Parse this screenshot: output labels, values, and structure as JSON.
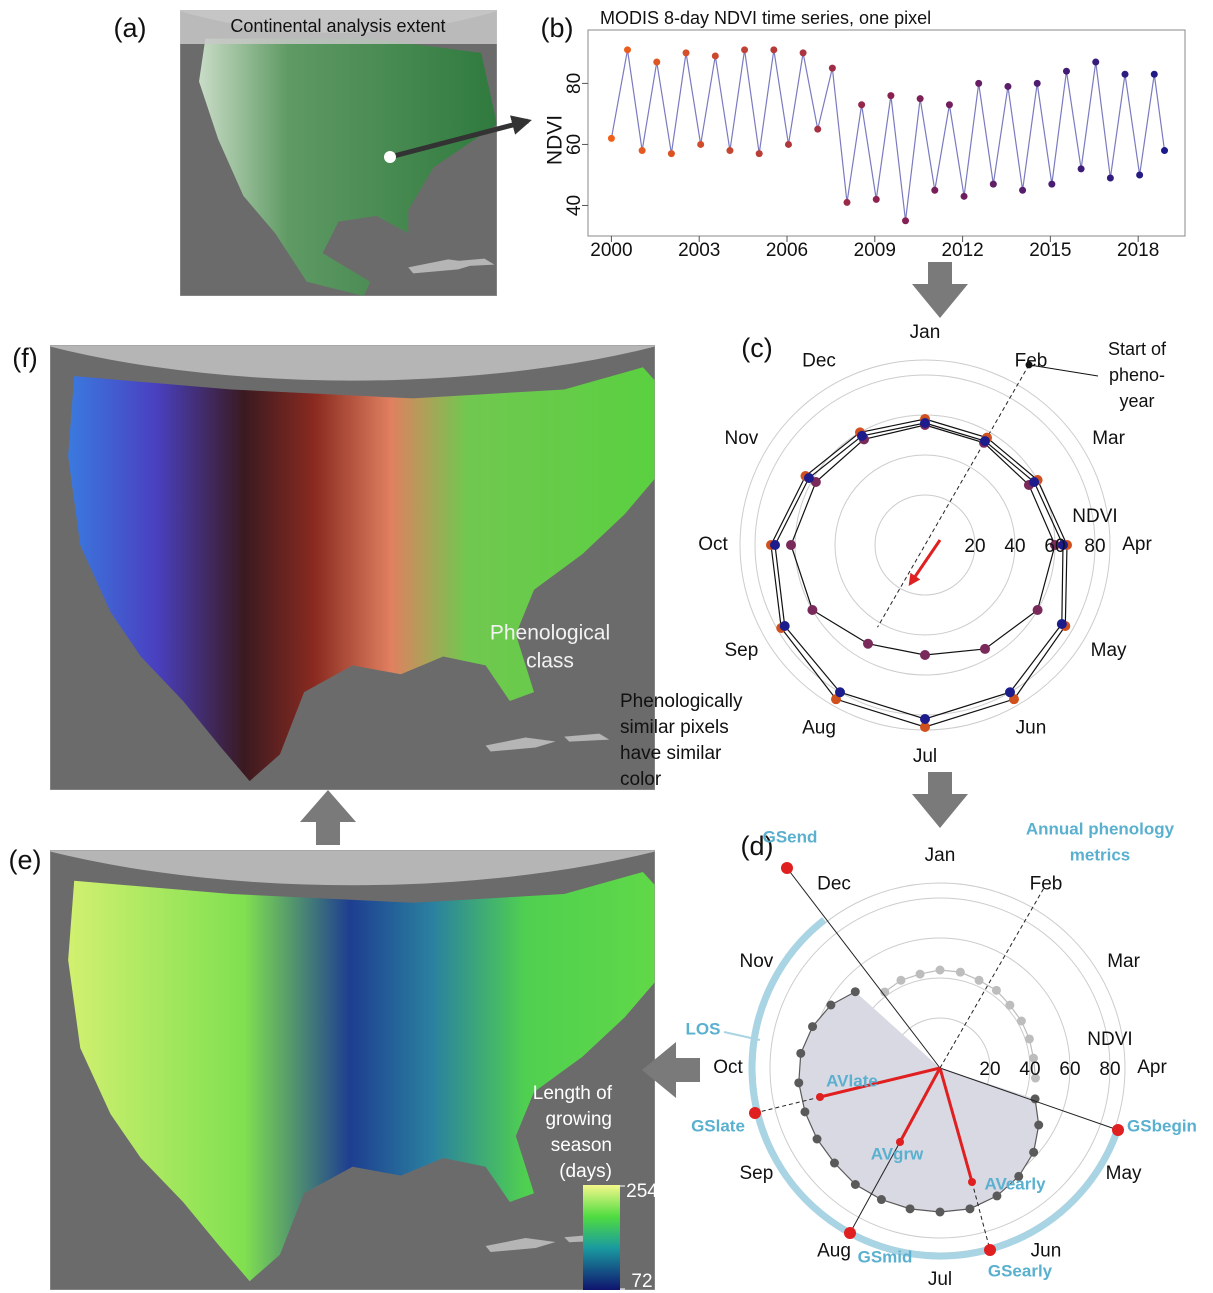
{
  "panels": {
    "a": {
      "label": "(a)",
      "title": "Continental analysis extent"
    },
    "b": {
      "label": "(b)",
      "title": "MODIS 8-day NDVI time series, one pixel",
      "ylabel": "NDVI",
      "xlim": [
        1999.2,
        2019.6
      ],
      "ylim": [
        30,
        97.5
      ],
      "xticks": [
        2000,
        2003,
        2006,
        2009,
        2012,
        2015,
        2018
      ],
      "yticks": [
        40,
        60,
        80
      ],
      "colors": [
        "#f0601a",
        "#8a2050",
        "#1a1a8a"
      ],
      "line_color": "#7a7ac0",
      "x": [
        2000.0,
        2000.55,
        2001.05,
        2001.55,
        2002.05,
        2002.55,
        2003.05,
        2003.55,
        2004.05,
        2004.55,
        2005.05,
        2005.55,
        2006.05,
        2006.55,
        2007.05,
        2007.55,
        2008.05,
        2008.55,
        2009.05,
        2009.55,
        2010.05,
        2010.55,
        2011.05,
        2011.55,
        2012.05,
        2012.55,
        2013.05,
        2013.55,
        2014.05,
        2014.55,
        2015.05,
        2015.55,
        2016.05,
        2016.55,
        2017.05,
        2017.55,
        2018.05,
        2018.55,
        2018.9
      ],
      "values": [
        62,
        91,
        58,
        87,
        57,
        90,
        60,
        89,
        58,
        91,
        57,
        91,
        60,
        90,
        65,
        85,
        41,
        73,
        42,
        76,
        35,
        75,
        45,
        73,
        43,
        80,
        47,
        79,
        45,
        80,
        47,
        84,
        52,
        87,
        49,
        83,
        50,
        83,
        58
      ]
    },
    "c": {
      "label": "(c)",
      "months": [
        "Jan",
        "Feb",
        "Mar",
        "Apr",
        "May",
        "Jun",
        "Jul",
        "Aug",
        "Sep",
        "Oct",
        "Nov",
        "Dec"
      ],
      "rlim": [
        -5,
        87.5
      ],
      "rticks": [
        20,
        40,
        60,
        80
      ],
      "rlabel": "NDVI",
      "annotation": [
        "Start of",
        "pheno-",
        "year"
      ],
      "x": [
        0,
        1,
        2,
        3,
        4,
        5,
        6,
        7,
        8,
        9,
        10,
        11
      ],
      "series": [
        {
          "color": "#d0501e",
          "values": [
            58,
            57,
            60,
            66,
            76,
            84,
            86,
            84,
            78,
            72,
            64,
            60
          ]
        },
        {
          "color": "#7a2a5a",
          "values": [
            55,
            54,
            55,
            60,
            60,
            55,
            50,
            52,
            60,
            62,
            58,
            56
          ]
        },
        {
          "color": "#1c1c8c",
          "values": [
            56,
            55,
            58,
            64,
            74,
            80,
            82,
            80,
            76,
            70,
            62,
            58
          ]
        }
      ]
    },
    "d": {
      "label": "(d)",
      "title": [
        "Annual phenology",
        "metrics"
      ],
      "months": [
        "Jan",
        "Feb",
        "Mar",
        "Apr",
        "May",
        "Jun",
        "Jul",
        "Aug",
        "Sep",
        "Oct",
        "Nov",
        "Dec"
      ],
      "rlim": [
        -5,
        87.5
      ],
      "rticks": [
        20,
        40,
        60,
        80
      ],
      "rlabel": "NDVI",
      "metrics": [
        "GSend",
        "GSbegin",
        "GSlate",
        "GSmid",
        "GSearly",
        "AVlate",
        "AVgrw",
        "AVearly"
      ],
      "los_label": "LOS",
      "series": [
        {
          "color": "#bdbdbd",
          "x": [
            10.8,
            11.2,
            11.6,
            0,
            0.4,
            0.8,
            1.2,
            1.6,
            2,
            2.4,
            2.8,
            3.2
          ],
          "values": [
            42,
            43,
            43,
            44,
            44,
            43,
            43,
            42,
            42,
            42,
            42,
            43
          ]
        },
        {
          "color": "#5a5a5a",
          "x": [
            3.6,
            4,
            4.4,
            4.8,
            5.2,
            5.6,
            6,
            6.4,
            6.8,
            7.2,
            7.6,
            8,
            8.4,
            8.8,
            9.2,
            9.6,
            10,
            10.4
          ],
          "values": [
            45,
            52,
            58,
            62,
            65,
            67,
            67,
            67,
            67,
            67,
            66,
            66,
            66,
            66,
            65,
            62,
            58,
            52
          ]
        }
      ]
    },
    "e": {
      "label": "(e)",
      "legend_title": [
        "Length of",
        "growing",
        "season",
        "(days)"
      ],
      "clim": [
        72,
        254
      ],
      "colorbar_ticks": [
        254,
        72
      ]
    },
    "f": {
      "label": "(f)",
      "class_label": [
        "Phenological",
        "class"
      ],
      "note": [
        "Phenologically",
        "similar pixels",
        "have similar",
        "color"
      ]
    }
  }
}
